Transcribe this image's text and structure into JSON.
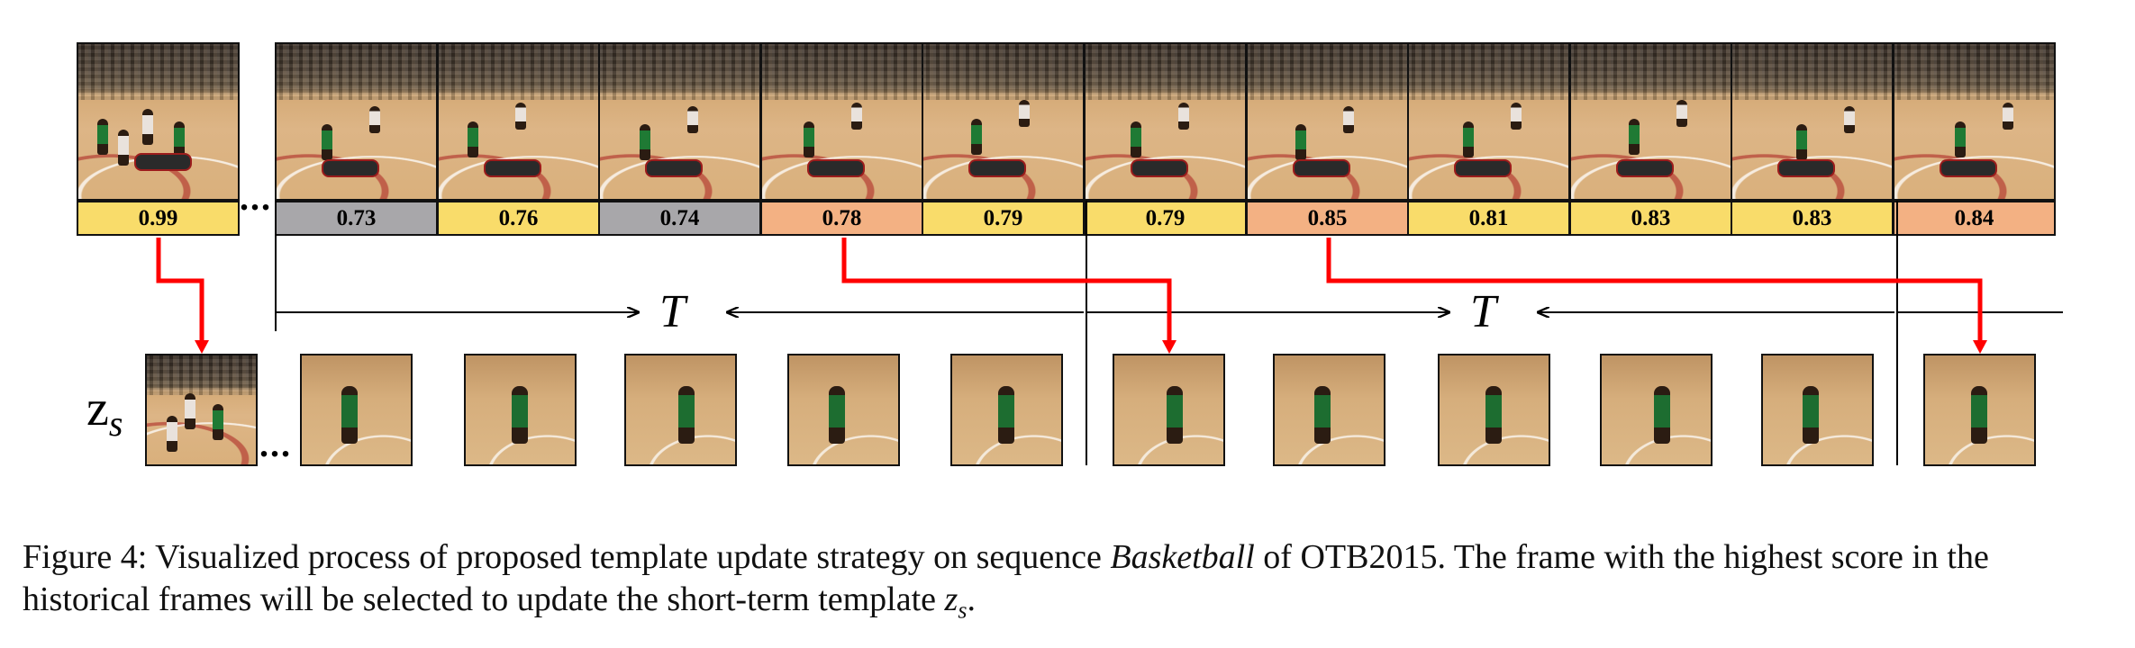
{
  "first_frame": {
    "score": "0.99",
    "highlight": "#f9dc6a"
  },
  "frames": [
    {
      "score": "0.73",
      "color": "#a8a7aa"
    },
    {
      "score": "0.76",
      "color": "#f9dc6a"
    },
    {
      "score": "0.74",
      "color": "#a8a7aa"
    },
    {
      "score": "0.78",
      "color": "#f3b183"
    },
    {
      "score": "0.79",
      "color": "#f9dc6a"
    },
    {
      "score": "0.79",
      "color": "#f9dc6a"
    },
    {
      "score": "0.85",
      "color": "#f3b183"
    },
    {
      "score": "0.81",
      "color": "#f9dc6a"
    },
    {
      "score": "0.83",
      "color": "#f9dc6a"
    },
    {
      "score": "0.83",
      "color": "#f9dc6a"
    },
    {
      "score": "0.84",
      "color": "#f3b183"
    }
  ],
  "interval_label": "T",
  "template_label": "z",
  "template_subscript": "s",
  "ellipsis": "...",
  "caption": {
    "part1": "Figure 4: Visualized process of proposed template update strategy on sequence ",
    "sequence": "Basketball",
    "part2": " of OTB2015. The frame with the highest score in the historical frames will be selected to update the short-term template ",
    "symbol": "z",
    "symbol_sub": "s",
    "part3": "."
  },
  "colors": {
    "arrow": "#ff0000",
    "line": "#000000"
  }
}
